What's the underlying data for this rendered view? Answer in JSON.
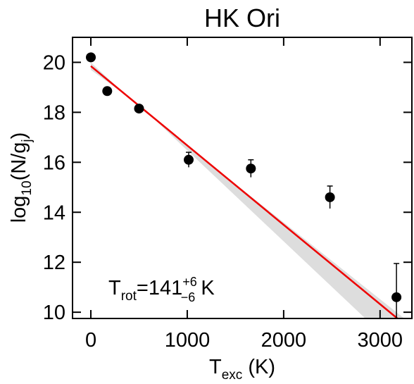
{
  "chart_data": {
    "type": "scatter",
    "title": "HK Ori",
    "x_label": {
      "main": "T",
      "sub": "exc",
      "tail": " (K)"
    },
    "y_label": {
      "main": "log",
      "sub": "10",
      "mid": "(N/g",
      "sub2": "j",
      "tail": ")"
    },
    "annotation": {
      "main": "T",
      "sub": "rot",
      "mid": "=141",
      "sup": "+6",
      "low": "−6",
      "tail": " K"
    },
    "x": [
      0,
      170,
      500,
      1015,
      1660,
      2480,
      3170
    ],
    "values": [
      20.2,
      18.85,
      18.15,
      16.1,
      15.75,
      14.6,
      10.6
    ],
    "errors": [
      0.1,
      0.1,
      0.1,
      0.3,
      0.35,
      0.45,
      1.35
    ],
    "color": "#000000",
    "fit": {
      "x": [
        0,
        3180
      ],
      "values": [
        19.85,
        9.75
      ],
      "color": "#ee0000"
    },
    "band": {
      "x": [
        0,
        500,
        3300
      ],
      "edge1": [
        19.7,
        18.3,
        8.1
      ],
      "edge2": [
        20.0,
        18.2,
        9.6
      ],
      "color": "#dddddd"
    },
    "xlim": [
      -190,
      3330
    ],
    "ylim": [
      9.75,
      21.0
    ],
    "xticks": [
      0,
      1000,
      2000,
      3000
    ],
    "yticks": [
      10,
      12,
      14,
      16,
      18,
      20
    ]
  }
}
